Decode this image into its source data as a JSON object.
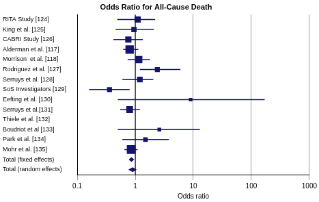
{
  "chart_data": {
    "type": "forest",
    "title": "Odds Ratio for All-Cause Death",
    "x_label": "Odds ratio",
    "log": "x",
    "xlim": [
      0.1,
      1000
    ],
    "xticks": [
      0.1,
      1,
      10,
      100,
      1000
    ],
    "grid": true,
    "color": "#14146e",
    "reference_line": 1,
    "studies": [
      {
        "name": "RITA Study [124]",
        "or": 1.1,
        "lower": 0.49,
        "upper": 2.2,
        "weight": 8
      },
      {
        "name": "King et al. [125]",
        "or": 0.95,
        "lower": 0.46,
        "upper": 2.1,
        "weight": 5
      },
      {
        "name": "CABRI Study [126]",
        "or": 0.76,
        "lower": 0.42,
        "upper": 1.35,
        "weight": 8
      },
      {
        "name": "Alderman et al. [117]",
        "or": 0.8,
        "lower": 0.62,
        "upper": 1.13,
        "weight": 18
      },
      {
        "name": "Morrison  et al. [118]",
        "or": 1.15,
        "lower": 0.74,
        "upper": 1.8,
        "weight": 12
      },
      {
        "name": "Rodriguez et al. [127]",
        "or": 2.4,
        "lower": 1.2,
        "upper": 6.0,
        "weight": 4
      },
      {
        "name": "Serruys et al. [128]",
        "or": 1.2,
        "lower": 0.6,
        "upper": 2.05,
        "weight": 6
      },
      {
        "name": "SoS Investigators [129]",
        "or": 0.36,
        "lower": 0.16,
        "upper": 0.8,
        "weight": 4
      },
      {
        "name": "Eefting et al. [130]",
        "or": 9,
        "lower": 0.5,
        "upper": 170,
        "weight": 1
      },
      {
        "name": "Serruys et al.[131]",
        "or": 0.8,
        "lower": 0.55,
        "upper": 1.2,
        "weight": 10
      },
      {
        "name": "Thiele et al. [132]",
        "or": null,
        "lower": null,
        "upper": null,
        "weight": null
      },
      {
        "name": "Boudriot et al [133]",
        "or": 2.6,
        "lower": 0.5,
        "upper": 13,
        "weight": 1.5
      },
      {
        "name": "Park et al. [134]",
        "or": 1.5,
        "lower": 0.6,
        "upper": 3.8,
        "weight": 3
      },
      {
        "name": "Mohr et al. [135]",
        "or": 0.85,
        "lower": 0.65,
        "upper": 1.1,
        "weight": 20
      }
    ],
    "totals": [
      {
        "name": "Total (fixed effects)",
        "or": 0.86,
        "lower": 0.77,
        "upper": 0.96
      },
      {
        "name": "Total (random effects)",
        "or": 0.9,
        "lower": 0.76,
        "upper": 1.06
      }
    ]
  }
}
